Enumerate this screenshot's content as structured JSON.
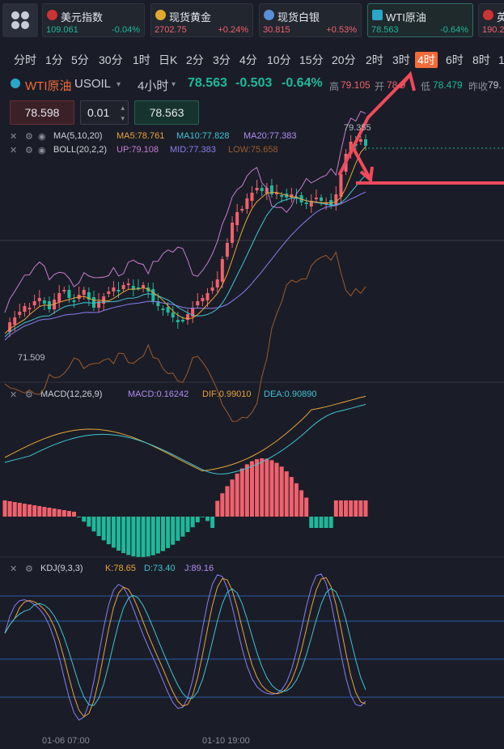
{
  "tickers": [
    {
      "name": "美元指数",
      "price": "109.061",
      "change": "-0.04%",
      "dir": "dn",
      "icon": "us-flag-icon",
      "iconColor": "#c33"
    },
    {
      "name": "现货黄金",
      "price": "2702.75",
      "change": "+0.24%",
      "dir": "up",
      "icon": "gold-icon",
      "iconColor": "#e0a82e"
    },
    {
      "name": "现货白银",
      "price": "30.815",
      "change": "+0.53%",
      "dir": "up",
      "icon": "silver-icon",
      "iconColor": "#5b8fd6"
    },
    {
      "name": "WTI原油",
      "price": "78.563",
      "change": "-0.64%",
      "dir": "dn",
      "icon": "oil-icon",
      "iconColor": "#2aa6c9"
    },
    {
      "name": "英",
      "price": "190.2",
      "change": "",
      "dir": "up",
      "icon": "uk-flag-icon",
      "iconColor": "#c33"
    }
  ],
  "timeframes": [
    "分时",
    "1分",
    "5分",
    "30分",
    "1时",
    "日K",
    "2分",
    "3分",
    "4分",
    "10分",
    "15分",
    "20分",
    "2时",
    "3时",
    "4时",
    "6时",
    "8时",
    "1"
  ],
  "selected_timeframe": "4时",
  "symbol": {
    "name": "WTI原油",
    "code": "USOIL",
    "interval": "4小时",
    "price": "78.563",
    "change": "-0.503",
    "pct": "-0.64%",
    "high_label": "高",
    "high": "79.105",
    "open_label": "开",
    "open": "78.9",
    "low_label": "低",
    "low": "78.479",
    "prev_label": "昨收",
    "prev": "79."
  },
  "order": {
    "sell": "78.598",
    "qty": "0.01",
    "buy": "78.563"
  },
  "indicators": {
    "ma": {
      "label": "MA(5,10,20)",
      "ma5": "MA5:78.761",
      "ma10": "MA10:77.828",
      "ma20": "MA20:77.383"
    },
    "boll": {
      "label": "BOLL(20,2,2)",
      "up": "UP:79.108",
      "mid": "MID:77.383",
      "low": "LOW:75.658"
    },
    "macd": {
      "label": "MACD(12,26,9)",
      "macd": "MACD:0.16242",
      "dif": "DIF:0.99010",
      "dea": "DEA:0.90890"
    },
    "kdj": {
      "label": "KDJ(9,3,3)",
      "k": "K:78.65",
      "d": "D:73.40",
      "j": "J:89.16"
    }
  },
  "chart_labels": {
    "high_mark": "79.355",
    "low_mark": "71.509"
  },
  "dates": [
    "01-06 07:00",
    "01-10 19:00"
  ],
  "colors": {
    "up": "#f0616d",
    "down": "#1fb89a",
    "ma5": "#e8a33b",
    "ma10": "#40c4d4",
    "ma20": "#8a7cf0",
    "boll_up": "#c97bd0",
    "boll_low": "#9c5a2e",
    "accent": "#f26b3a",
    "annotation": "#f04a5c"
  }
}
